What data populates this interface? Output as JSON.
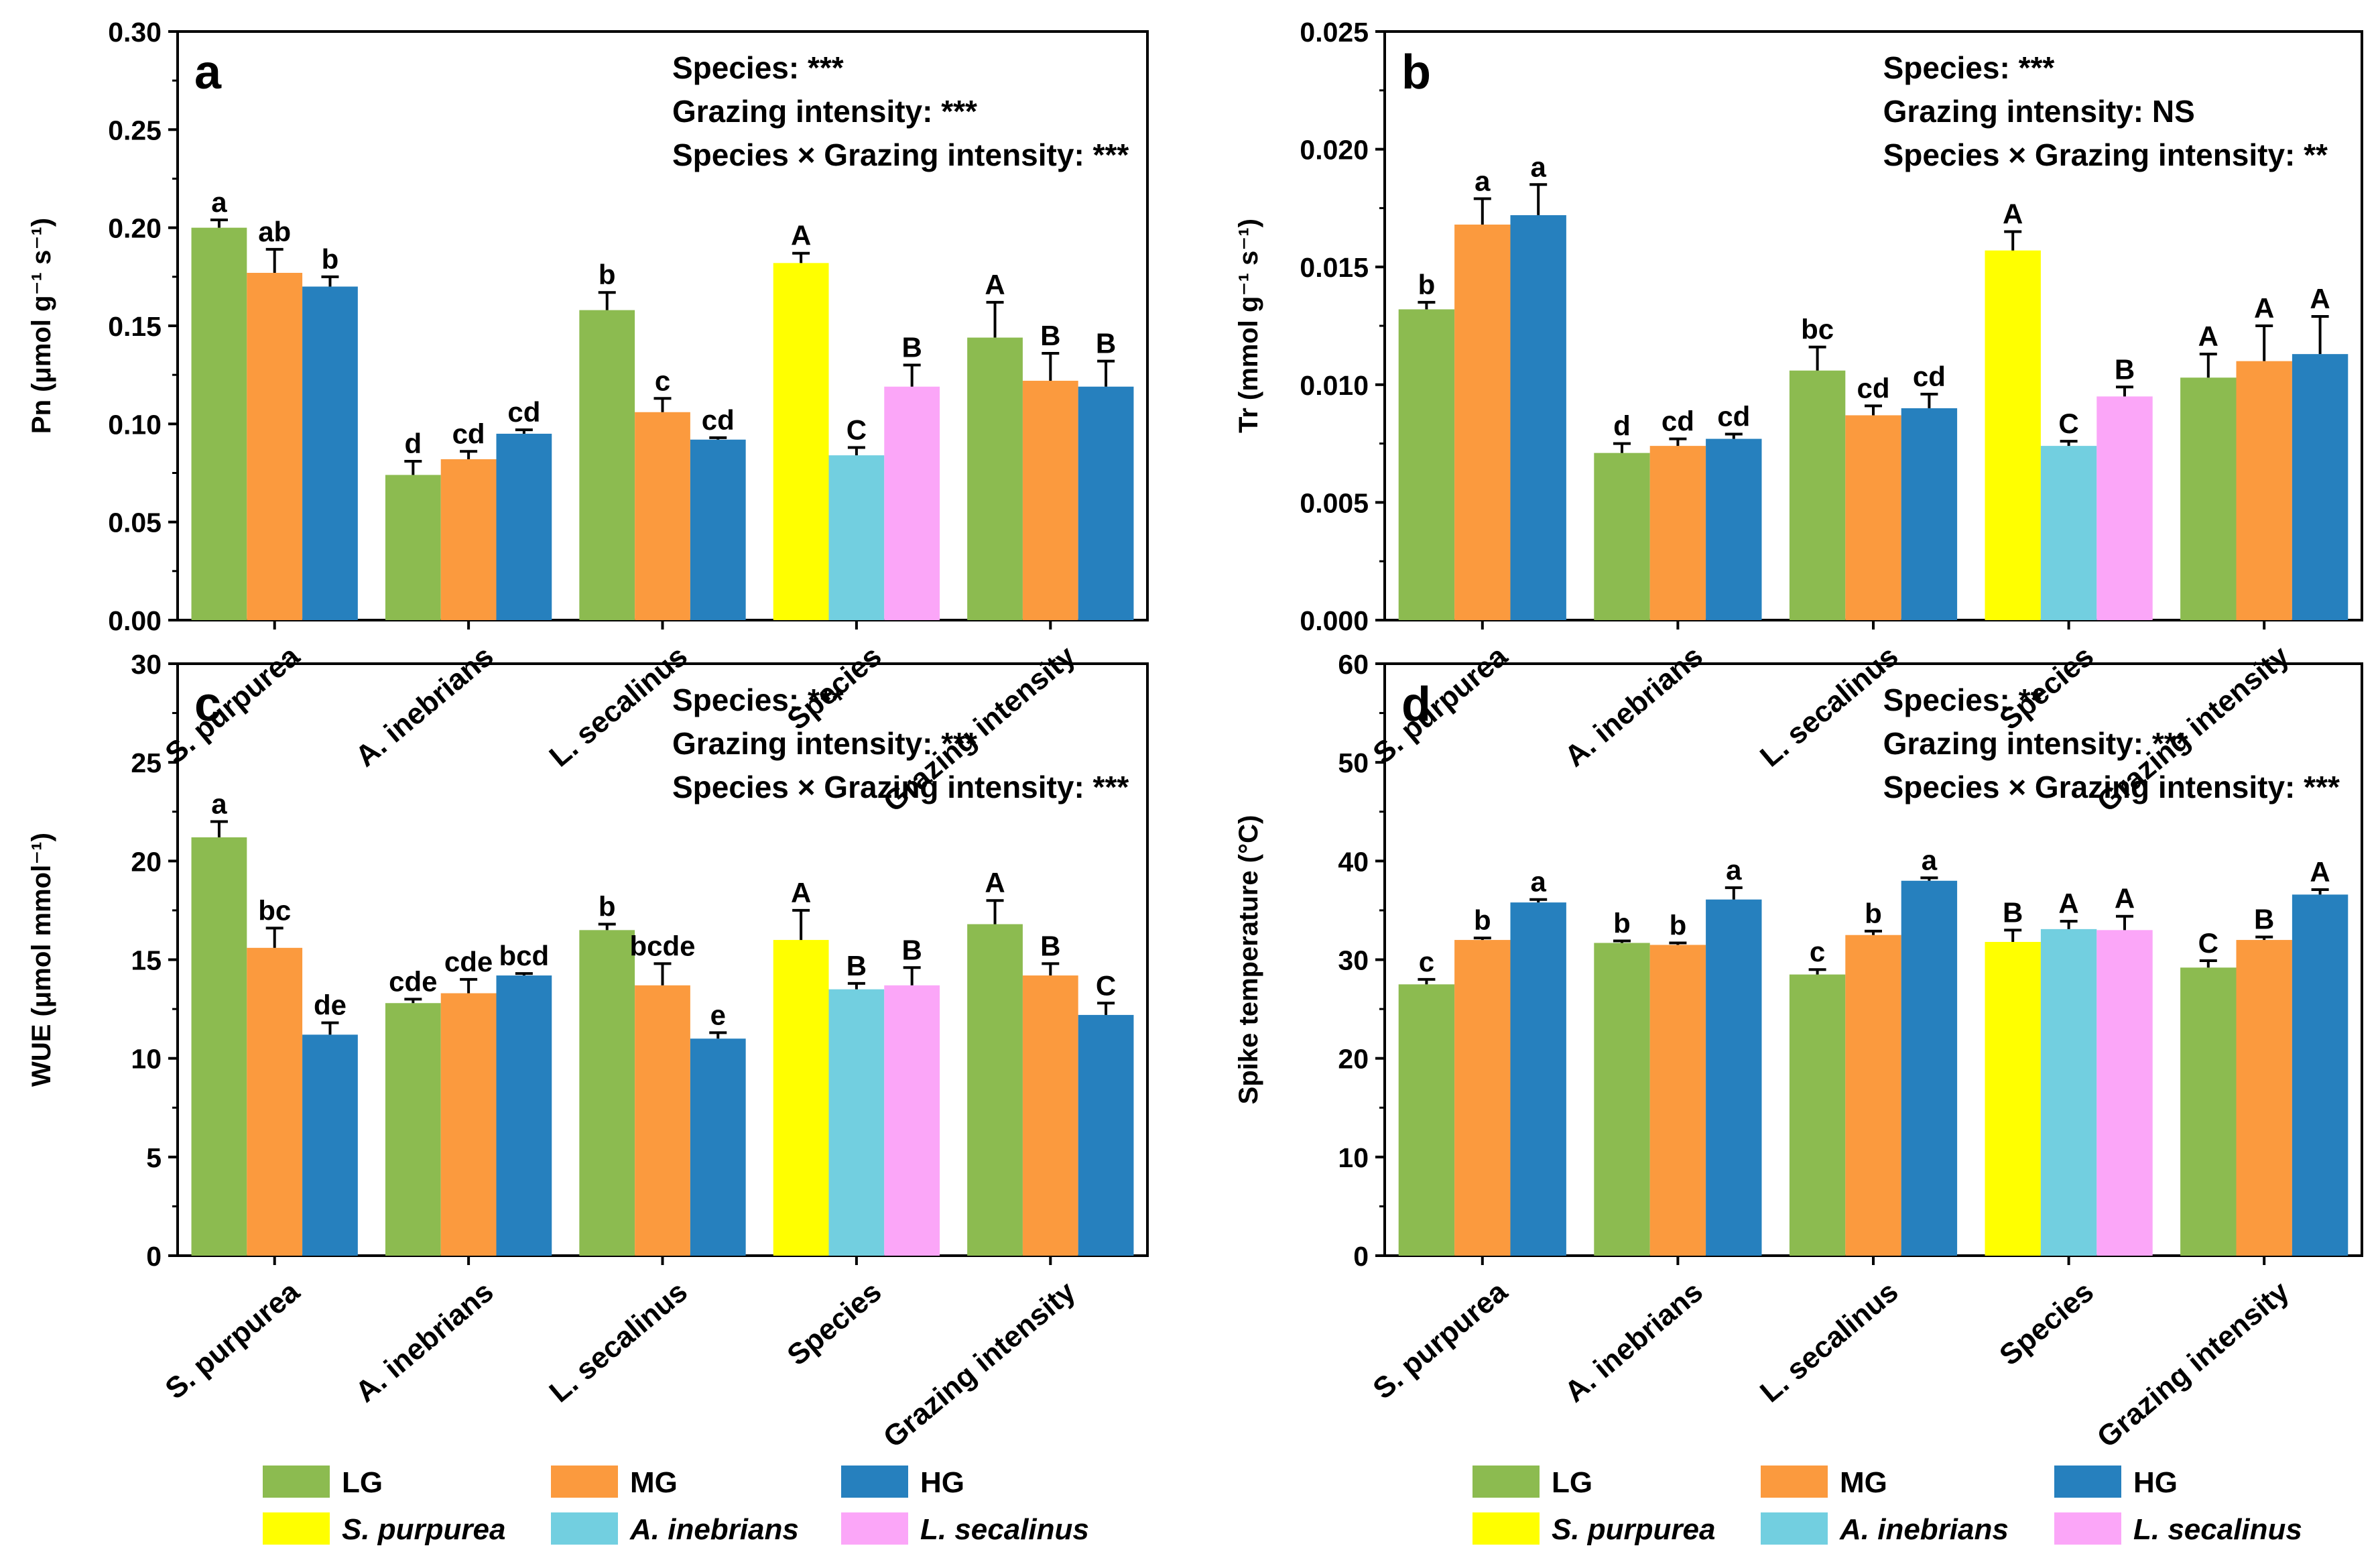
{
  "colors": {
    "LG": "#8cbb50",
    "MG": "#fb9a3e",
    "HG": "#2680be",
    "S. purpurea": "#ffff00",
    "A. inebrians": "#72cfe0",
    "L. secalinus": "#fba6f8"
  },
  "legend": {
    "row1": [
      {
        "key": "LG",
        "label": "LG",
        "italic": false
      },
      {
        "key": "MG",
        "label": "MG",
        "italic": false
      },
      {
        "key": "HG",
        "label": "HG",
        "italic": false
      }
    ],
    "row2": [
      {
        "key": "S. purpurea",
        "label": "S. purpurea",
        "italic": true
      },
      {
        "key": "A. inebrians",
        "label": "A. inebrians",
        "italic": true
      },
      {
        "key": "L. secalinus",
        "label": "L. secalinus",
        "italic": true
      }
    ]
  },
  "chart_data": [
    {
      "panel": "a",
      "type": "bar",
      "ylabel": "Pn (μmol g⁻¹ s⁻¹)",
      "ylim": [
        0,
        0.3
      ],
      "yticks": [
        "0.00",
        "0.05",
        "0.10",
        "0.15",
        "0.20",
        "0.25",
        "0.30"
      ],
      "categories": [
        "S. purpurea",
        "A. inebrians",
        "L. secalinus",
        "Species",
        "Grazing intensity"
      ],
      "stats": [
        "Species: ***",
        "Grazing intensity: ***",
        "Species × Grazing intensity: ***"
      ],
      "groups": [
        {
          "bars": [
            {
              "key": "LG",
              "value": 0.2,
              "err": 0.004,
              "label": "a"
            },
            {
              "key": "MG",
              "value": 0.177,
              "err": 0.012,
              "label": "ab"
            },
            {
              "key": "HG",
              "value": 0.17,
              "err": 0.005,
              "label": "b"
            }
          ]
        },
        {
          "bars": [
            {
              "key": "LG",
              "value": 0.074,
              "err": 0.007,
              "label": "d"
            },
            {
              "key": "MG",
              "value": 0.082,
              "err": 0.004,
              "label": "cd"
            },
            {
              "key": "HG",
              "value": 0.095,
              "err": 0.002,
              "label": "cd"
            }
          ]
        },
        {
          "bars": [
            {
              "key": "LG",
              "value": 0.158,
              "err": 0.009,
              "label": "b"
            },
            {
              "key": "MG",
              "value": 0.106,
              "err": 0.007,
              "label": "c"
            },
            {
              "key": "HG",
              "value": 0.092,
              "err": 0.001,
              "label": "cd"
            }
          ]
        },
        {
          "bars": [
            {
              "key": "S. purpurea",
              "value": 0.182,
              "err": 0.005,
              "label": "A"
            },
            {
              "key": "A. inebrians",
              "value": 0.084,
              "err": 0.004,
              "label": "C"
            },
            {
              "key": "L. secalinus",
              "value": 0.119,
              "err": 0.011,
              "label": "B"
            }
          ]
        },
        {
          "bars": [
            {
              "key": "LG",
              "value": 0.144,
              "err": 0.018,
              "label": "A"
            },
            {
              "key": "MG",
              "value": 0.122,
              "err": 0.014,
              "label": "B"
            },
            {
              "key": "HG",
              "value": 0.119,
              "err": 0.013,
              "label": "B"
            }
          ]
        }
      ]
    },
    {
      "panel": "b",
      "type": "bar",
      "ylabel": "Tr (mmol g⁻¹ s⁻¹)",
      "ylim": [
        0,
        0.025
      ],
      "yticks": [
        "0.000",
        "0.005",
        "0.010",
        "0.015",
        "0.020",
        "0.025"
      ],
      "categories": [
        "S. purpurea",
        "A. inebrians",
        "L. secalinus",
        "Species",
        "Grazing intensity"
      ],
      "stats": [
        "Species: ***",
        "Grazing intensity: NS",
        "Species × Grazing intensity: **"
      ],
      "groups": [
        {
          "bars": [
            {
              "key": "LG",
              "value": 0.0132,
              "err": 0.0003,
              "label": "b"
            },
            {
              "key": "MG",
              "value": 0.0168,
              "err": 0.0011,
              "label": "a"
            },
            {
              "key": "HG",
              "value": 0.0172,
              "err": 0.0013,
              "label": "a"
            }
          ]
        },
        {
          "bars": [
            {
              "key": "LG",
              "value": 0.0071,
              "err": 0.0004,
              "label": "d"
            },
            {
              "key": "MG",
              "value": 0.0074,
              "err": 0.0003,
              "label": "cd"
            },
            {
              "key": "HG",
              "value": 0.0077,
              "err": 0.0002,
              "label": "cd"
            }
          ]
        },
        {
          "bars": [
            {
              "key": "LG",
              "value": 0.0106,
              "err": 0.001,
              "label": "bc"
            },
            {
              "key": "MG",
              "value": 0.0087,
              "err": 0.0004,
              "label": "cd"
            },
            {
              "key": "HG",
              "value": 0.009,
              "err": 0.0006,
              "label": "cd"
            }
          ]
        },
        {
          "bars": [
            {
              "key": "S. purpurea",
              "value": 0.0157,
              "err": 0.0008,
              "label": "A"
            },
            {
              "key": "A. inebrians",
              "value": 0.0074,
              "err": 0.0002,
              "label": "C"
            },
            {
              "key": "L. secalinus",
              "value": 0.0095,
              "err": 0.0004,
              "label": "B"
            }
          ]
        },
        {
          "bars": [
            {
              "key": "LG",
              "value": 0.0103,
              "err": 0.001,
              "label": "A"
            },
            {
              "key": "MG",
              "value": 0.011,
              "err": 0.0015,
              "label": "A"
            },
            {
              "key": "HG",
              "value": 0.0113,
              "err": 0.0016,
              "label": "A"
            }
          ]
        }
      ]
    },
    {
      "panel": "c",
      "type": "bar",
      "ylabel": "WUE (μmol mmol⁻¹)",
      "ylim": [
        0,
        30
      ],
      "yticks": [
        "0",
        "5",
        "10",
        "15",
        "20",
        "25",
        "30"
      ],
      "categories": [
        "S. purpurea",
        "A. inebrians",
        "L. secalinus",
        "Species",
        "Grazing intensity"
      ],
      "stats": [
        "Species: ***",
        "Grazing intensity: ***",
        "Species × Grazing intensity: ***"
      ],
      "groups": [
        {
          "bars": [
            {
              "key": "LG",
              "value": 21.2,
              "err": 0.8,
              "label": "a"
            },
            {
              "key": "MG",
              "value": 15.6,
              "err": 1.0,
              "label": "bc"
            },
            {
              "key": "HG",
              "value": 11.2,
              "err": 0.6,
              "label": "de"
            }
          ]
        },
        {
          "bars": [
            {
              "key": "LG",
              "value": 12.8,
              "err": 0.2,
              "label": "cde"
            },
            {
              "key": "MG",
              "value": 13.3,
              "err": 0.7,
              "label": "cde"
            },
            {
              "key": "HG",
              "value": 14.2,
              "err": 0.1,
              "label": "bcd"
            }
          ]
        },
        {
          "bars": [
            {
              "key": "LG",
              "value": 16.5,
              "err": 0.3,
              "label": "b"
            },
            {
              "key": "MG",
              "value": 13.7,
              "err": 1.1,
              "label": "bcde"
            },
            {
              "key": "HG",
              "value": 11.0,
              "err": 0.3,
              "label": "e"
            }
          ]
        },
        {
          "bars": [
            {
              "key": "S. purpurea",
              "value": 16.0,
              "err": 1.5,
              "label": "A"
            },
            {
              "key": "A. inebrians",
              "value": 13.5,
              "err": 0.3,
              "label": "B"
            },
            {
              "key": "L. secalinus",
              "value": 13.7,
              "err": 0.9,
              "label": "B"
            }
          ]
        },
        {
          "bars": [
            {
              "key": "LG",
              "value": 16.8,
              "err": 1.2,
              "label": "A"
            },
            {
              "key": "MG",
              "value": 14.2,
              "err": 0.6,
              "label": "B"
            },
            {
              "key": "HG",
              "value": 12.2,
              "err": 0.6,
              "label": "C"
            }
          ]
        }
      ]
    },
    {
      "panel": "d",
      "type": "bar",
      "ylabel": "Spike temperature (°C)",
      "ylim": [
        0,
        60
      ],
      "yticks": [
        "0",
        "10",
        "20",
        "30",
        "40",
        "50",
        "60"
      ],
      "categories": [
        "S. purpurea",
        "A. inebrians",
        "L. secalinus",
        "Species",
        "Grazing intensity"
      ],
      "stats": [
        "Species: **",
        "Grazing intensity: ***",
        "Species × Grazing intensity: ***"
      ],
      "groups": [
        {
          "bars": [
            {
              "key": "LG",
              "value": 27.5,
              "err": 0.5,
              "label": "c"
            },
            {
              "key": "MG",
              "value": 32.0,
              "err": 0.2,
              "label": "b"
            },
            {
              "key": "HG",
              "value": 35.8,
              "err": 0.3,
              "label": "a"
            }
          ]
        },
        {
          "bars": [
            {
              "key": "LG",
              "value": 31.7,
              "err": 0.2,
              "label": "b"
            },
            {
              "key": "MG",
              "value": 31.5,
              "err": 0.2,
              "label": "b"
            },
            {
              "key": "HG",
              "value": 36.1,
              "err": 1.2,
              "label": "a"
            }
          ]
        },
        {
          "bars": [
            {
              "key": "LG",
              "value": 28.5,
              "err": 0.5,
              "label": "c"
            },
            {
              "key": "MG",
              "value": 32.5,
              "err": 0.4,
              "label": "b"
            },
            {
              "key": "HG",
              "value": 38.0,
              "err": 0.3,
              "label": "a"
            }
          ]
        },
        {
          "bars": [
            {
              "key": "S. purpurea",
              "value": 31.8,
              "err": 1.2,
              "label": "B"
            },
            {
              "key": "A. inebrians",
              "value": 33.1,
              "err": 0.8,
              "label": "A"
            },
            {
              "key": "L. secalinus",
              "value": 33.0,
              "err": 1.4,
              "label": "A"
            }
          ]
        },
        {
          "bars": [
            {
              "key": "LG",
              "value": 29.2,
              "err": 0.7,
              "label": "C"
            },
            {
              "key": "MG",
              "value": 32.0,
              "err": 0.3,
              "label": "B"
            },
            {
              "key": "HG",
              "value": 36.6,
              "err": 0.5,
              "label": "A"
            }
          ]
        }
      ]
    }
  ]
}
